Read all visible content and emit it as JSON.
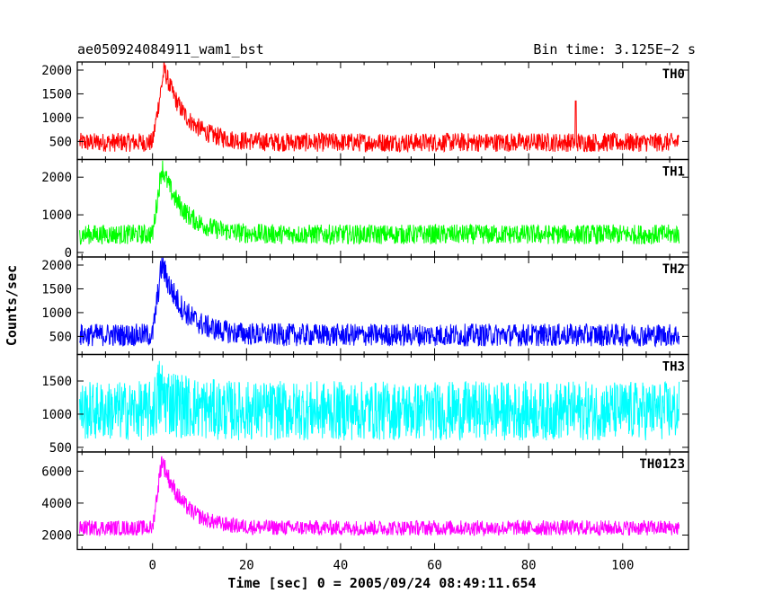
{
  "chart_data": {
    "type": "line",
    "title_left": "ae050924084911_wam1_bst",
    "title_right": "Bin time: 3.125E−2 s",
    "xlabel": "Time [sec] 0 = 2005/09/24 08:49:11.654",
    "ylabel": "Counts/sec",
    "xlim": [
      -16,
      114
    ],
    "xticks": [
      0,
      20,
      40,
      60,
      80,
      100
    ],
    "xtick_labels": [
      "0",
      "20",
      "40",
      "60",
      "80",
      "100"
    ],
    "data_x_range": [
      -15.5,
      112
    ],
    "bin_time_s": 0.03125,
    "panels": [
      {
        "name": "TH0",
        "color": "#ff0000",
        "ylim": [
          120,
          2170
        ],
        "yticks": [
          500,
          1000,
          1500,
          2000
        ],
        "ytick_labels": [
          "500",
          "1000",
          "1500",
          "2000"
        ],
        "baseline": 480,
        "noise_low": 250,
        "noise_high": 260,
        "peak": 1550,
        "peak_time": 2.5,
        "spike": [
          90,
          1350
        ]
      },
      {
        "name": "TH1",
        "color": "#00ff00",
        "ylim": [
          -120,
          2470
        ],
        "yticks": [
          0,
          1000,
          2000
        ],
        "ytick_labels": [
          "0",
          "1000",
          "2000"
        ],
        "baseline": 480,
        "noise_low": 330,
        "noise_high": 360,
        "peak": 1800,
        "peak_time": 2.0
      },
      {
        "name": "TH2",
        "color": "#0000ff",
        "ylim": [
          120,
          2170
        ],
        "yticks": [
          500,
          1000,
          1500,
          2000
        ],
        "ytick_labels": [
          "500",
          "1000",
          "1500",
          "2000"
        ],
        "baseline": 530,
        "noise_low": 300,
        "noise_high": 380,
        "peak": 1500,
        "peak_time": 2.0
      },
      {
        "name": "TH3",
        "color": "#00ffff",
        "ylim": [
          430,
          1900
        ],
        "yticks": [
          500,
          1000,
          1500
        ],
        "ytick_labels": [
          "500",
          "1000",
          "1500"
        ],
        "baseline": 1050,
        "noise_low": 560,
        "noise_high": 750,
        "peak": 250,
        "peak_time": 1.5
      },
      {
        "name": "TH0123",
        "color": "#ff00ff",
        "ylim": [
          1100,
          7200
        ],
        "yticks": [
          2000,
          4000,
          6000
        ],
        "ytick_labels": [
          "2000",
          "4000",
          "6000"
        ],
        "baseline": 2450,
        "noise_low": 600,
        "noise_high": 800,
        "peak": 4300,
        "peak_time": 2.0
      }
    ]
  }
}
